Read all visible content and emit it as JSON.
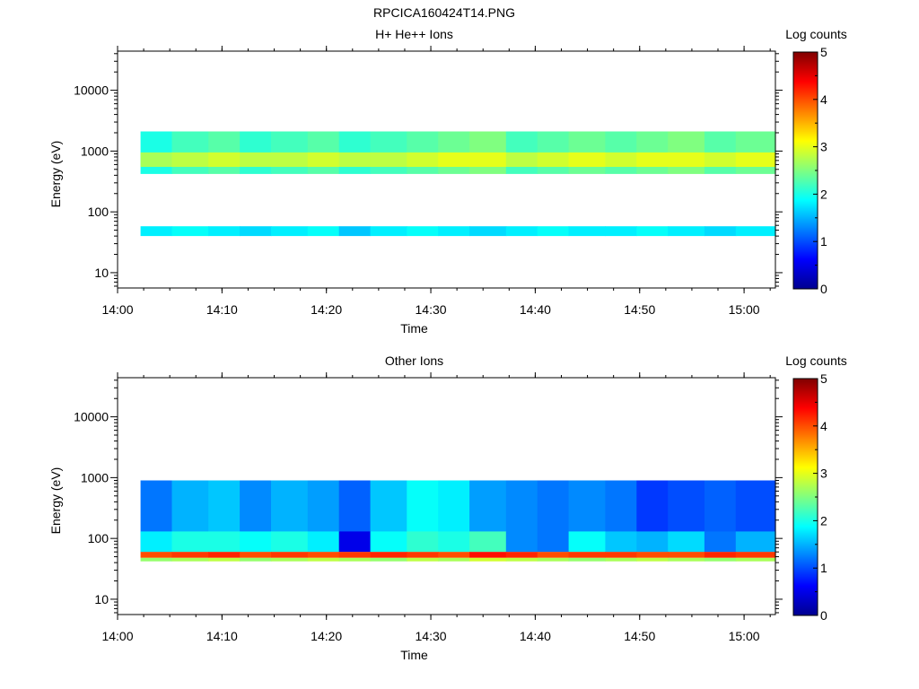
{
  "figure_title": "RPCICA160424T14.PNG",
  "colorbar_colors": [
    "#00008f",
    "#0000ff",
    "#0080ff",
    "#00ffff",
    "#80ff80",
    "#ffff00",
    "#ff8000",
    "#ff0000",
    "#800000"
  ],
  "chart_data": [
    {
      "type": "heatmap",
      "title": "H+ He++ Ions",
      "xlabel": "Time",
      "ylabel": "Energy (eV)",
      "x_ticks": [
        "14:00",
        "14:10",
        "14:20",
        "14:30",
        "14:40",
        "14:50",
        "15:00"
      ],
      "x_tick_minutes": [
        0,
        10,
        20,
        30,
        40,
        50,
        60
      ],
      "xlim_minutes": [
        0,
        63
      ],
      "y_ticks": [
        "10",
        "100",
        "1000",
        "10000"
      ],
      "y_tick_values": [
        10,
        100,
        1000,
        10000
      ],
      "yscale": "log",
      "ylim": [
        5.6,
        44000
      ],
      "colorbar_label": "Log counts",
      "colorbar_ticks": [
        "0",
        "1",
        "2",
        "3",
        "4",
        "5"
      ],
      "colorbar_range": [
        0,
        5
      ],
      "time_bin_edges_minutes": [
        2.2,
        5.2,
        8.7,
        11.7,
        14.7,
        18.2,
        21.2,
        24.2,
        27.7,
        30.7,
        33.7,
        37.2,
        40.2,
        43.2,
        46.7,
        49.7,
        52.7,
        56.2,
        59.2,
        63.0
      ],
      "bands": [
        {
          "e_low": 420,
          "e_high": 2100,
          "values": [
            2.0,
            2.2,
            2.3,
            2.1,
            2.2,
            2.3,
            2.1,
            2.2,
            2.3,
            2.4,
            2.5,
            2.2,
            2.3,
            2.4,
            2.3,
            2.4,
            2.5,
            2.3,
            2.4
          ]
        },
        {
          "e_low": 550,
          "e_high": 950,
          "values": [
            2.7,
            2.8,
            2.9,
            2.8,
            2.8,
            2.9,
            2.8,
            2.8,
            2.9,
            3.0,
            3.0,
            2.8,
            2.9,
            3.0,
            2.9,
            3.0,
            3.0,
            2.9,
            3.0
          ]
        },
        {
          "e_low": 40,
          "e_high": 58,
          "values": [
            1.8,
            1.9,
            1.8,
            1.7,
            1.8,
            1.9,
            1.6,
            1.8,
            1.9,
            1.8,
            1.7,
            1.8,
            1.9,
            1.8,
            1.8,
            1.9,
            1.8,
            1.7,
            1.8
          ]
        }
      ]
    },
    {
      "type": "heatmap",
      "title": "Other Ions",
      "xlabel": "Time",
      "ylabel": "Energy (eV)",
      "x_ticks": [
        "14:00",
        "14:10",
        "14:20",
        "14:30",
        "14:40",
        "14:50",
        "15:00"
      ],
      "x_tick_minutes": [
        0,
        10,
        20,
        30,
        40,
        50,
        60
      ],
      "xlim_minutes": [
        0,
        63
      ],
      "y_ticks": [
        "10",
        "100",
        "1000",
        "10000"
      ],
      "y_tick_values": [
        10,
        100,
        1000,
        10000
      ],
      "yscale": "log",
      "ylim": [
        5.6,
        44000
      ],
      "colorbar_label": "Log counts",
      "colorbar_ticks": [
        "0",
        "1",
        "2",
        "3",
        "4",
        "5"
      ],
      "colorbar_range": [
        0,
        5
      ],
      "time_bin_edges_minutes": [
        2.2,
        5.2,
        8.7,
        11.7,
        14.7,
        18.2,
        21.2,
        24.2,
        27.7,
        30.7,
        33.7,
        37.2,
        40.2,
        43.2,
        46.7,
        49.7,
        52.7,
        56.2,
        59.2,
        63.0
      ],
      "bands": [
        {
          "e_low": 60,
          "e_high": 900,
          "values": [
            1.2,
            1.5,
            1.6,
            1.3,
            1.5,
            1.4,
            1.1,
            1.6,
            1.9,
            1.8,
            1.4,
            1.3,
            1.2,
            1.3,
            1.2,
            0.9,
            1.0,
            1.1,
            1.0
          ]
        },
        {
          "e_low": 60,
          "e_high": 130,
          "values": [
            1.8,
            2.0,
            2.0,
            1.9,
            2.0,
            1.8,
            0.5,
            1.9,
            2.1,
            2.0,
            2.2,
            1.3,
            1.2,
            1.9,
            1.6,
            1.5,
            1.7,
            1.2,
            1.5
          ]
        },
        {
          "e_low": 48,
          "e_high": 60,
          "values": [
            4.0,
            4.1,
            4.2,
            4.0,
            4.1,
            4.0,
            4.1,
            4.2,
            4.1,
            4.0,
            4.3,
            4.2,
            4.0,
            4.1,
            4.1,
            4.0,
            4.0,
            4.2,
            4.1
          ]
        },
        {
          "e_low": 42,
          "e_high": 48,
          "values": [
            2.6,
            2.7,
            2.8,
            2.6,
            2.7,
            2.8,
            2.7,
            2.6,
            2.8,
            2.7,
            2.9,
            2.8,
            2.7,
            2.6,
            2.7,
            2.8,
            2.7,
            2.6,
            2.7
          ]
        }
      ]
    }
  ]
}
